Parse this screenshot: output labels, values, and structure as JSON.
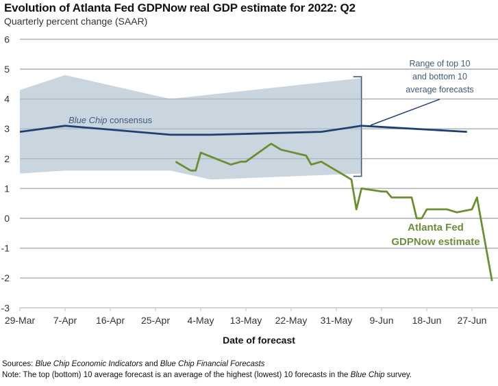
{
  "header": {
    "title": "Evolution of Atlanta Fed GDPNow real GDP estimate for 2022: Q2",
    "subtitle": "Quarterly percent change (SAAR)"
  },
  "footer": {
    "sources_label": "Sources:",
    "sources_italic_1": "Blue Chip Economic Indicators",
    "sources_and": "and",
    "sources_italic_2": "Blue Chip Financial Forecasts",
    "note_label": "Note:",
    "note_text": "The top (bottom) 10 average forecast is an average of the highest (lowest) 10 forecasts in the",
    "note_italic": "Blue Chip",
    "note_end": "survey."
  },
  "chart_data": {
    "type": "line",
    "title": "Evolution of Atlanta Fed GDPNow real GDP estimate for 2022: Q2",
    "subtitle": "Quarterly percent change (SAAR)",
    "xlabel": "Date of forecast",
    "ylabel": "",
    "ylim": [
      -3,
      6
    ],
    "yticks": [
      6,
      5,
      4,
      3,
      2,
      1,
      0,
      -1,
      -2,
      -3
    ],
    "x_start": "2022-03-29",
    "x_end": "2022-07-03",
    "xticks": [
      {
        "label": "29-Mar",
        "day": 0
      },
      {
        "label": "7-Apr",
        "day": 9
      },
      {
        "label": "16-Apr",
        "day": 18
      },
      {
        "label": "25-Apr",
        "day": 27
      },
      {
        "label": "4-May",
        "day": 36
      },
      {
        "label": "13-May",
        "day": 45
      },
      {
        "label": "22-May",
        "day": 54
      },
      {
        "label": "31-May",
        "day": 63
      },
      {
        "label": "9-Jun",
        "day": 72
      },
      {
        "label": "18-Jun",
        "day": 81
      },
      {
        "label": "27-Jun",
        "day": 90
      }
    ],
    "grid": true,
    "series": [
      {
        "name": "Range of top 10 and bottom 10 average forecasts",
        "kind": "band",
        "color": "#c9d5df",
        "upper": [
          [
            0,
            4.3
          ],
          [
            9,
            4.8
          ],
          [
            30,
            4.0
          ],
          [
            68,
            4.7
          ]
        ],
        "lower": [
          [
            0,
            1.5
          ],
          [
            9,
            1.6
          ],
          [
            30,
            1.6
          ],
          [
            38,
            1.3
          ],
          [
            68,
            1.5
          ]
        ]
      },
      {
        "name": "Blue Chip consensus",
        "kind": "line",
        "color": "#1f3f73",
        "points": [
          [
            0,
            2.9
          ],
          [
            9,
            3.1
          ],
          [
            30,
            2.8
          ],
          [
            38,
            2.8
          ],
          [
            60,
            2.9
          ],
          [
            68,
            3.1
          ],
          [
            89,
            2.9
          ]
        ]
      },
      {
        "name": "Atlanta Fed GDPNow estimate",
        "kind": "line",
        "color": "#6b8e2f",
        "points": [
          [
            31,
            1.9
          ],
          [
            34,
            1.6
          ],
          [
            35,
            1.6
          ],
          [
            36,
            2.2
          ],
          [
            39,
            2.0
          ],
          [
            42,
            1.8
          ],
          [
            44,
            1.9
          ],
          [
            45,
            1.9
          ],
          [
            50,
            2.5
          ],
          [
            52,
            2.3
          ],
          [
            57,
            2.1
          ],
          [
            58,
            1.8
          ],
          [
            60,
            1.9
          ],
          [
            66,
            1.3
          ],
          [
            67,
            0.3
          ],
          [
            68,
            1.0
          ],
          [
            72,
            0.9
          ],
          [
            73,
            0.9
          ],
          [
            74,
            0.7
          ],
          [
            78,
            0.7
          ],
          [
            79,
            0.0
          ],
          [
            80,
            0.0
          ],
          [
            81,
            0.3
          ],
          [
            85,
            0.3
          ],
          [
            87,
            0.2
          ],
          [
            90,
            0.3
          ],
          [
            91,
            0.7
          ],
          [
            94,
            -2.1
          ]
        ]
      }
    ],
    "annotations": [
      {
        "text_italic": "Blue Chip",
        "text": "consensus",
        "series": "Blue Chip consensus"
      },
      {
        "text_lines": [
          "Range of top 10",
          "and bottom 10",
          "average forecasts"
        ],
        "series": "range"
      },
      {
        "text_lines": [
          "Atlanta Fed",
          "GDPNow estimate"
        ],
        "series": "GDPNow"
      }
    ]
  }
}
